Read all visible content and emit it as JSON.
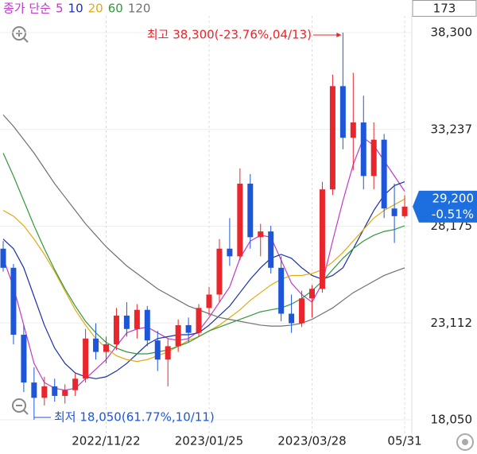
{
  "chart_data": {
    "type": "candlestick",
    "header": "173",
    "legend_title": "종가 단순",
    "categories": [
      null,
      null,
      null,
      null,
      null,
      null,
      null,
      null,
      null,
      null,
      "2022/11/22",
      null,
      null,
      null,
      null,
      null,
      null,
      null,
      null,
      null,
      "2023/01/25",
      null,
      null,
      null,
      null,
      null,
      null,
      null,
      null,
      null,
      "2023/03/28",
      null,
      null,
      null,
      null,
      null,
      null,
      null,
      null,
      "05/31"
    ],
    "open": [
      27000,
      26000,
      22500,
      20000,
      19200,
      19800,
      19300,
      19600,
      20200,
      22300,
      21600,
      22000,
      23500,
      22800,
      23800,
      22200,
      21200,
      21900,
      23000,
      22600,
      23900,
      24600,
      27000,
      26600,
      30400,
      27600,
      27900,
      26000,
      23600,
      23100,
      24400,
      24900,
      30100,
      35500,
      32800,
      33600,
      30800,
      32700,
      29100,
      28700
    ],
    "high": [
      27400,
      26200,
      23000,
      20800,
      20300,
      20200,
      19900,
      20500,
      22800,
      23100,
      22400,
      23900,
      24200,
      24100,
      24000,
      22700,
      22300,
      23300,
      23400,
      24100,
      25000,
      27500,
      28600,
      31200,
      30900,
      28300,
      28200,
      26600,
      24600,
      24800,
      25100,
      30500,
      36100,
      38300,
      36200,
      35000,
      33600,
      33000,
      30400,
      29800
    ],
    "low": [
      25800,
      22000,
      19500,
      18050,
      18800,
      19000,
      18900,
      19300,
      20000,
      21200,
      21000,
      21700,
      22400,
      22300,
      21900,
      20600,
      19800,
      21600,
      22100,
      22400,
      23500,
      24200,
      26100,
      26400,
      27000,
      26600,
      25700,
      23200,
      22600,
      22900,
      23400,
      24700,
      29800,
      32200,
      31100,
      30100,
      30100,
      28600,
      27300,
      28600
    ],
    "close": [
      26000,
      22500,
      20000,
      19200,
      19800,
      19300,
      19600,
      20200,
      22300,
      21600,
      22000,
      23500,
      22800,
      23800,
      22200,
      21200,
      21900,
      23000,
      22600,
      23900,
      24600,
      27000,
      26600,
      30400,
      27600,
      27900,
      26000,
      23600,
      23100,
      24400,
      24900,
      30100,
      35500,
      32800,
      33600,
      30800,
      32700,
      29100,
      28700,
      29200
    ],
    "up_color": "#e8262b",
    "down_color": "#1d56d8",
    "series": [
      {
        "name": "5",
        "color": "#c13ac9",
        "values": [
          26500,
          25000,
          23000,
          21000,
          20000,
          19700,
          19600,
          19700,
          20200,
          20700,
          21200,
          21900,
          22600,
          22800,
          22900,
          22600,
          22300,
          22200,
          22300,
          22700,
          23400,
          24200,
          25000,
          26500,
          27400,
          27700,
          27600,
          26400,
          25200,
          24600,
          24200,
          25200,
          27400,
          29500,
          31400,
          32800,
          32400,
          31600,
          30800,
          30000
        ]
      },
      {
        "name": "10",
        "color": "#1b2fa8",
        "values": [
          27500,
          27000,
          26000,
          24500,
          23000,
          21800,
          21000,
          20500,
          20300,
          20200,
          20300,
          20600,
          21000,
          21500,
          22000,
          22300,
          22400,
          22500,
          22500,
          22600,
          23000,
          23500,
          24000,
          24700,
          25400,
          26000,
          26500,
          26700,
          26500,
          26000,
          25600,
          25400,
          25600,
          26000,
          27000,
          28000,
          29000,
          29800,
          30300,
          30500
        ]
      },
      {
        "name": "20",
        "color": "#e3a90f",
        "values": [
          29000,
          28700,
          28200,
          27500,
          26700,
          25800,
          24800,
          23800,
          23000,
          22300,
          21800,
          21400,
          21200,
          21100,
          21200,
          21400,
          21600,
          21900,
          22200,
          22400,
          22700,
          23000,
          23400,
          23800,
          24300,
          24700,
          25100,
          25400,
          25600,
          25600,
          25700,
          25900,
          26300,
          26800,
          27400,
          28000,
          28600,
          29000,
          29300,
          29600
        ]
      },
      {
        "name": "60",
        "color": "#2f9a3c",
        "values": [
          32000,
          30800,
          29500,
          28200,
          27000,
          25900,
          24900,
          24000,
          23200,
          22600,
          22100,
          21800,
          21600,
          21500,
          21500,
          21600,
          21700,
          21900,
          22100,
          22400,
          22700,
          22900,
          23100,
          23300,
          23500,
          23700,
          23800,
          23900,
          24100,
          24400,
          24800,
          25300,
          25900,
          26500,
          27000,
          27400,
          27700,
          27900,
          28000,
          28200
        ]
      },
      {
        "name": "120",
        "color": "#707070",
        "values": [
          34000,
          33400,
          32700,
          32000,
          31200,
          30400,
          29700,
          29000,
          28300,
          27700,
          27100,
          26600,
          26100,
          25700,
          25300,
          24900,
          24600,
          24300,
          24000,
          23800,
          23600,
          23400,
          23300,
          23200,
          23100,
          23000,
          22950,
          22950,
          23000,
          23100,
          23300,
          23600,
          23900,
          24300,
          24700,
          25000,
          25300,
          25600,
          25800,
          26000
        ]
      }
    ],
    "ylim": [
      17343,
      39173
    ],
    "yticks": [
      {
        "value": 38300,
        "label": "38,300"
      },
      {
        "value": 33237,
        "label": "33,237"
      },
      {
        "value": 28175,
        "label": "28,175"
      },
      {
        "value": 23112,
        "label": "23,112"
      },
      {
        "value": 18050,
        "label": "18,050"
      }
    ],
    "grid": true,
    "high_annotation": "최고 38,300(-23.76%,04/13)",
    "low_annotation": "최저 18,050(61.77%,10/11)",
    "last_price": "29,200",
    "last_change": "-0.51%"
  }
}
